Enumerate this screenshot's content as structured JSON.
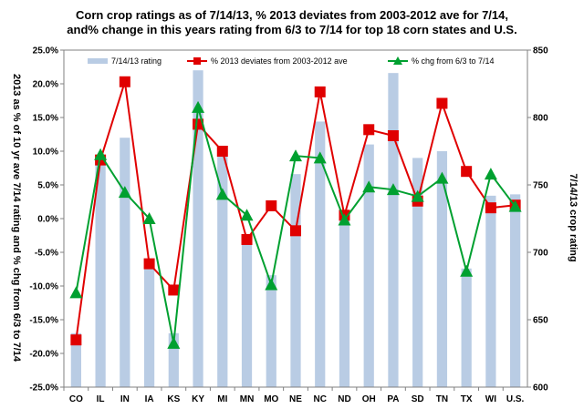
{
  "chart_data": {
    "type": "bar",
    "title_line1": "Corn crop ratings as of 7/14/13, % 2013 deviates from 2003-2012 ave for 7/14,",
    "title_line2": "and% change in this years rating from 6/3 to 7/14 for top 18 corn states and U.S.",
    "ylabel_left": "2013 as % of 10 yr ave 7/14 rating and % chg from 6/3 to 7/14",
    "ylabel_right": "7/14/13 crop rating",
    "categories": [
      "CO",
      "IL",
      "IN",
      "IA",
      "KS",
      "KY",
      "MI",
      "MN",
      "MO",
      "NE",
      "NC",
      "ND",
      "OH",
      "PA",
      "SD",
      "TN",
      "TX",
      "WI",
      "U.S."
    ],
    "y_left": {
      "min": -0.25,
      "max": 0.25,
      "step": 0.05,
      "tick_labels": [
        "-25.0%",
        "-20.0%",
        "-15.0%",
        "-10.0%",
        "-5.0%",
        "0.0%",
        "5.0%",
        "10.0%",
        "15.0%",
        "20.0%",
        "25.0%"
      ]
    },
    "y_right": {
      "min": 600,
      "max": 850,
      "step": 50,
      "tick_labels": [
        "600",
        "650",
        "700",
        "750",
        "800",
        "850"
      ]
    },
    "grid": false,
    "legend_position": "top",
    "series": [
      {
        "name": "7/14/13 rating",
        "kind": "bar",
        "axis": "right",
        "color": "#b9cce4",
        "values": [
          640,
          765,
          785,
          695,
          640,
          835,
          778,
          710,
          683,
          758,
          797,
          728,
          780,
          833,
          770,
          775,
          688,
          742,
          743
        ]
      },
      {
        "name": "% 2013 deviates from 2003-2012 ave",
        "kind": "line",
        "axis": "left",
        "color": "#e00000",
        "marker": "square",
        "values": [
          -0.18,
          0.087,
          0.203,
          -0.067,
          -0.106,
          0.14,
          0.1,
          -0.031,
          0.019,
          -0.018,
          0.188,
          0.005,
          0.132,
          0.123,
          0.026,
          0.171,
          0.07,
          0.016,
          0.02
        ]
      },
      {
        "name": "% chg from 6/3 to 7/14",
        "kind": "line",
        "axis": "left",
        "color": "#00a030",
        "marker": "triangle",
        "values": [
          -0.11,
          0.095,
          0.039,
          0.0,
          -0.185,
          0.165,
          0.036,
          0.005,
          -0.098,
          0.093,
          0.09,
          -0.002,
          0.047,
          0.043,
          0.033,
          0.06,
          -0.078,
          0.066,
          0.018
        ]
      }
    ]
  }
}
